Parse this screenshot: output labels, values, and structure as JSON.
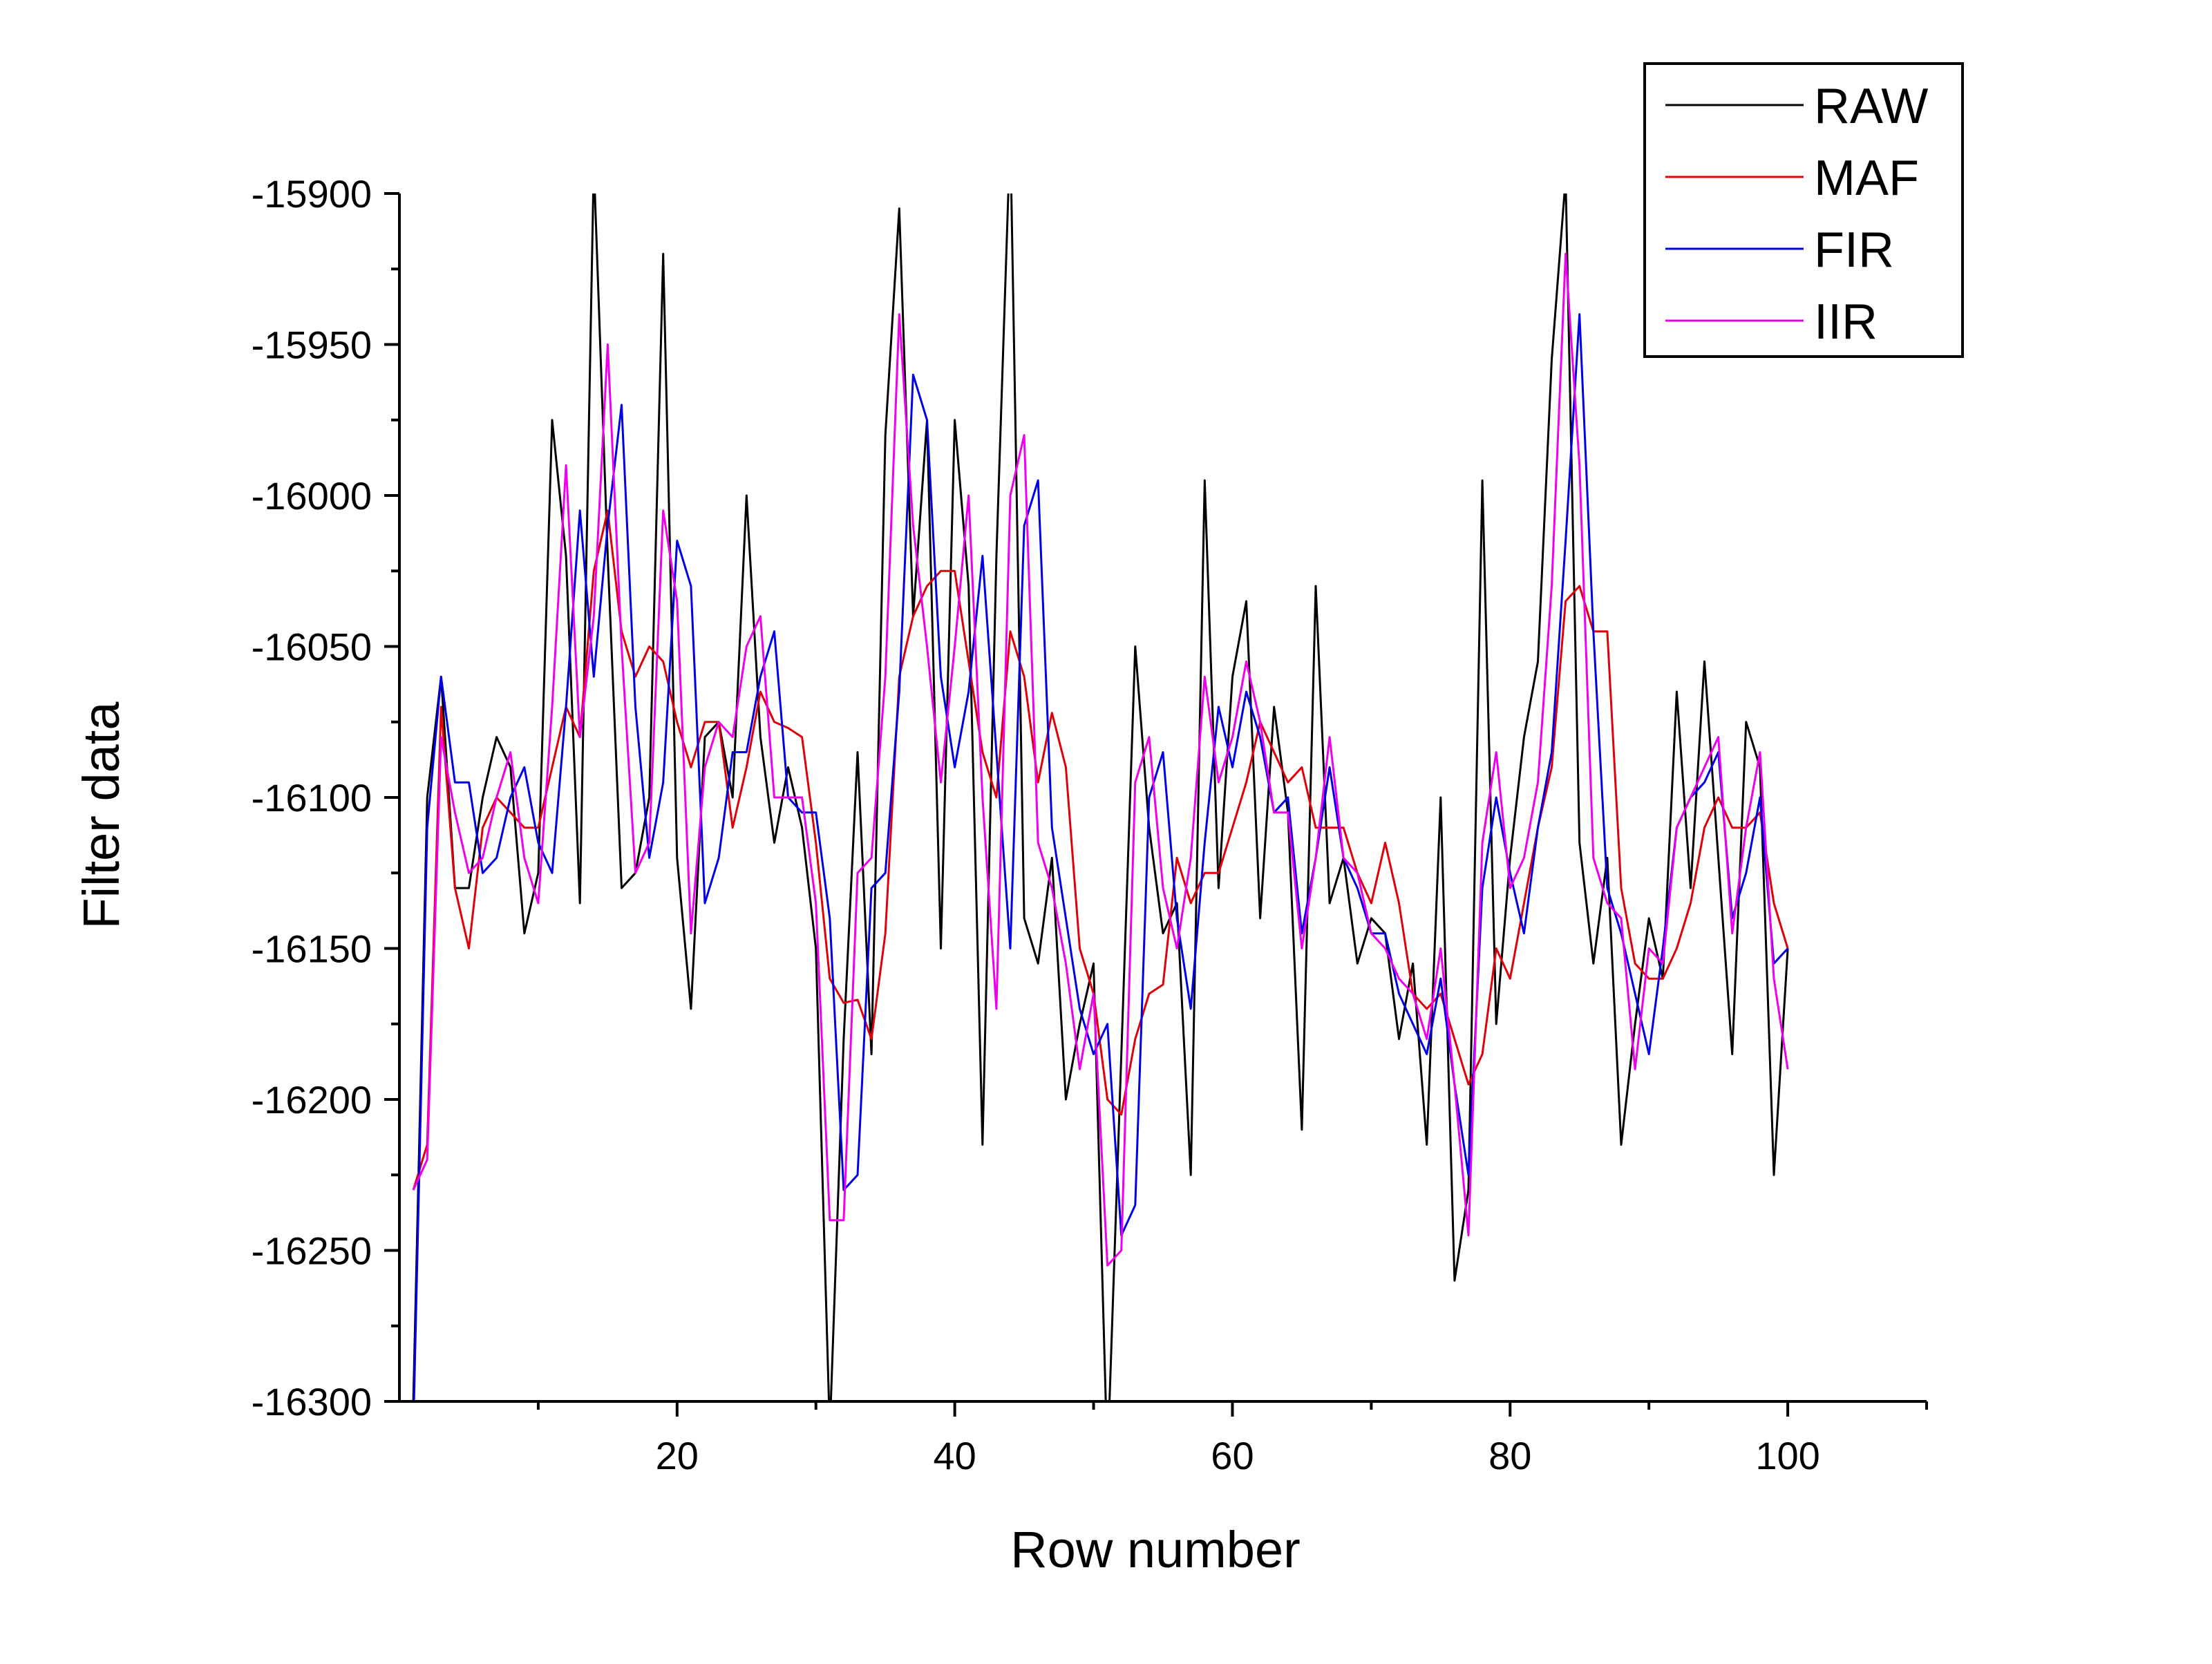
{
  "chart_data": {
    "type": "line",
    "xlabel": "Row number",
    "ylabel": "Filter data",
    "xlim": [
      0,
      110
    ],
    "ylim": [
      -16300,
      -15900
    ],
    "x_ticks": [
      20,
      40,
      60,
      80,
      100
    ],
    "x_tick_labels": [
      "20",
      "40",
      "60",
      "80",
      "100"
    ],
    "y_ticks": [
      -16300,
      -16250,
      -16200,
      -16150,
      -16100,
      -16050,
      -16000,
      -15950,
      -15900
    ],
    "y_tick_labels": [
      "-16300",
      "-16250",
      "-16200",
      "-16150",
      "-16100",
      "-16050",
      "-16000",
      "-15950",
      "-15900"
    ],
    "grid": false,
    "legend_position": "top-right",
    "x": [
      1,
      2,
      3,
      4,
      5,
      6,
      7,
      8,
      9,
      10,
      11,
      12,
      13,
      14,
      15,
      16,
      17,
      18,
      19,
      20,
      21,
      22,
      23,
      24,
      25,
      26,
      27,
      28,
      29,
      30,
      31,
      32,
      33,
      34,
      35,
      36,
      37,
      38,
      39,
      40,
      41,
      42,
      43,
      44,
      45,
      46,
      47,
      48,
      49,
      50,
      51,
      52,
      53,
      54,
      55,
      56,
      57,
      58,
      59,
      60,
      61,
      62,
      63,
      64,
      65,
      66,
      67,
      68,
      69,
      70,
      71,
      72,
      73,
      74,
      75,
      76,
      77,
      78,
      79,
      80,
      81,
      82,
      83,
      84,
      85,
      86,
      87,
      88,
      89,
      90,
      91,
      92,
      93,
      94,
      95,
      96,
      97,
      98,
      99,
      100
    ],
    "series": [
      {
        "name": "RAW",
        "color": "#000000",
        "values": [
          -16300,
          -16100,
          -16060,
          -16130,
          -16130,
          -16100,
          -16080,
          -16090,
          -16145,
          -16125,
          -15975,
          -16020,
          -16135,
          -15890,
          -16020,
          -16130,
          -16125,
          -16100,
          -15920,
          -16120,
          -16170,
          -16080,
          -16075,
          -16100,
          -16000,
          -16080,
          -16115,
          -16090,
          -16110,
          -16150,
          -16310,
          -16180,
          -16085,
          -16185,
          -15980,
          -15905,
          -16040,
          -15975,
          -16150,
          -15975,
          -16030,
          -16215,
          -16020,
          -15880,
          -16140,
          -16155,
          -16120,
          -16200,
          -16175,
          -16155,
          -16320,
          -16185,
          -16050,
          -16110,
          -16145,
          -16135,
          -16225,
          -15995,
          -16130,
          -16060,
          -16035,
          -16140,
          -16070,
          -16105,
          -16210,
          -16030,
          -16135,
          -16120,
          -16155,
          -16140,
          -16145,
          -16180,
          -16155,
          -16215,
          -16100,
          -16260,
          -16230,
          -15995,
          -16175,
          -16120,
          -16080,
          -16055,
          -15955,
          -15895,
          -16115,
          -16155,
          -16120,
          -16215,
          -16175,
          -16140,
          -16160,
          -16065,
          -16130,
          -16055,
          -16120,
          -16185,
          -16075,
          -16090,
          -16225,
          -16150
        ]
      },
      {
        "name": "MAF",
        "color": "#e0000a",
        "values": [
          -16230,
          -16215,
          -16070,
          -16130,
          -16150,
          -16110,
          -16100,
          -16105,
          -16110,
          -16110,
          -16090,
          -16070,
          -16080,
          -16025,
          -16005,
          -16045,
          -16060,
          -16050,
          -16055,
          -16075,
          -16090,
          -16075,
          -16075,
          -16110,
          -16090,
          -16065,
          -16075,
          -16077,
          -16080,
          -16115,
          -16160,
          -16168,
          -16167,
          -16180,
          -16145,
          -16060,
          -16040,
          -16030,
          -16025,
          -16025,
          -16055,
          -16085,
          -16100,
          -16045,
          -16060,
          -16095,
          -16072,
          -16090,
          -16150,
          -16165,
          -16200,
          -16205,
          -16180,
          -16165,
          -16162,
          -16120,
          -16135,
          -16125,
          -16125,
          -16110,
          -16095,
          -16075,
          -16085,
          -16095,
          -16090,
          -16110,
          -16110,
          -16110,
          -16125,
          -16135,
          -16115,
          -16135,
          -16165,
          -16170,
          -16165,
          -16180,
          -16195,
          -16185,
          -16150,
          -16160,
          -16135,
          -16110,
          -16090,
          -16035,
          -16030,
          -16045,
          -16045,
          -16130,
          -16155,
          -16160,
          -16160,
          -16150,
          -16135,
          -16110,
          -16100,
          -16110,
          -16110,
          -16105,
          -16135,
          -16150
        ]
      },
      {
        "name": "FIR",
        "color": "#0000e8",
        "values": [
          -16310,
          -16110,
          -16060,
          -16095,
          -16095,
          -16125,
          -16120,
          -16100,
          -16090,
          -16115,
          -16125,
          -16070,
          -16005,
          -16060,
          -16010,
          -15970,
          -16070,
          -16120,
          -16095,
          -16015,
          -16030,
          -16135,
          -16120,
          -16085,
          -16085,
          -16060,
          -16045,
          -16100,
          -16105,
          -16105,
          -16140,
          -16230,
          -16225,
          -16130,
          -16125,
          -16065,
          -15960,
          -15975,
          -16060,
          -16090,
          -16065,
          -16020,
          -16085,
          -16150,
          -16010,
          -15995,
          -16110,
          -16140,
          -16170,
          -16185,
          -16175,
          -16245,
          -16235,
          -16100,
          -16085,
          -16140,
          -16170,
          -16115,
          -16070,
          -16090,
          -16065,
          -16080,
          -16105,
          -16100,
          -16145,
          -16120,
          -16090,
          -16120,
          -16130,
          -16145,
          -16145,
          -16165,
          -16175,
          -16185,
          -16160,
          -16195,
          -16225,
          -16130,
          -16100,
          -16125,
          -16145,
          -16110,
          -16085,
          -16015,
          -15940,
          -16045,
          -16130,
          -16145,
          -16165,
          -16185,
          -16150,
          -16110,
          -16100,
          -16095,
          -16085,
          -16140,
          -16125,
          -16100,
          -16155,
          -16150
        ]
      },
      {
        "name": "IIR",
        "color": "#ee00ee",
        "values": [
          -16230,
          -16220,
          -16080,
          -16105,
          -16125,
          -16120,
          -16100,
          -16085,
          -16120,
          -16135,
          -16070,
          -15990,
          -16080,
          -16040,
          -15950,
          -16050,
          -16125,
          -16115,
          -16005,
          -16035,
          -16145,
          -16090,
          -16075,
          -16080,
          -16050,
          -16040,
          -16100,
          -16100,
          -16100,
          -16135,
          -16240,
          -16240,
          -16125,
          -16120,
          -16060,
          -15940,
          -16010,
          -16050,
          -16095,
          -16050,
          -16000,
          -16100,
          -16170,
          -16000,
          -15980,
          -16115,
          -16130,
          -16155,
          -16190,
          -16165,
          -16255,
          -16250,
          -16095,
          -16080,
          -16130,
          -16150,
          -16120,
          -16060,
          -16095,
          -16080,
          -16055,
          -16075,
          -16105,
          -16105,
          -16150,
          -16120,
          -16080,
          -16120,
          -16125,
          -16145,
          -16150,
          -16160,
          -16165,
          -16180,
          -16150,
          -16195,
          -16245,
          -16115,
          -16085,
          -16130,
          -16120,
          -16095,
          -16030,
          -15920,
          -15990,
          -16120,
          -16135,
          -16140,
          -16190,
          -16150,
          -16155,
          -16110,
          -16100,
          -16090,
          -16080,
          -16145,
          -16110,
          -16085,
          -16160,
          -16190
        ]
      }
    ]
  }
}
